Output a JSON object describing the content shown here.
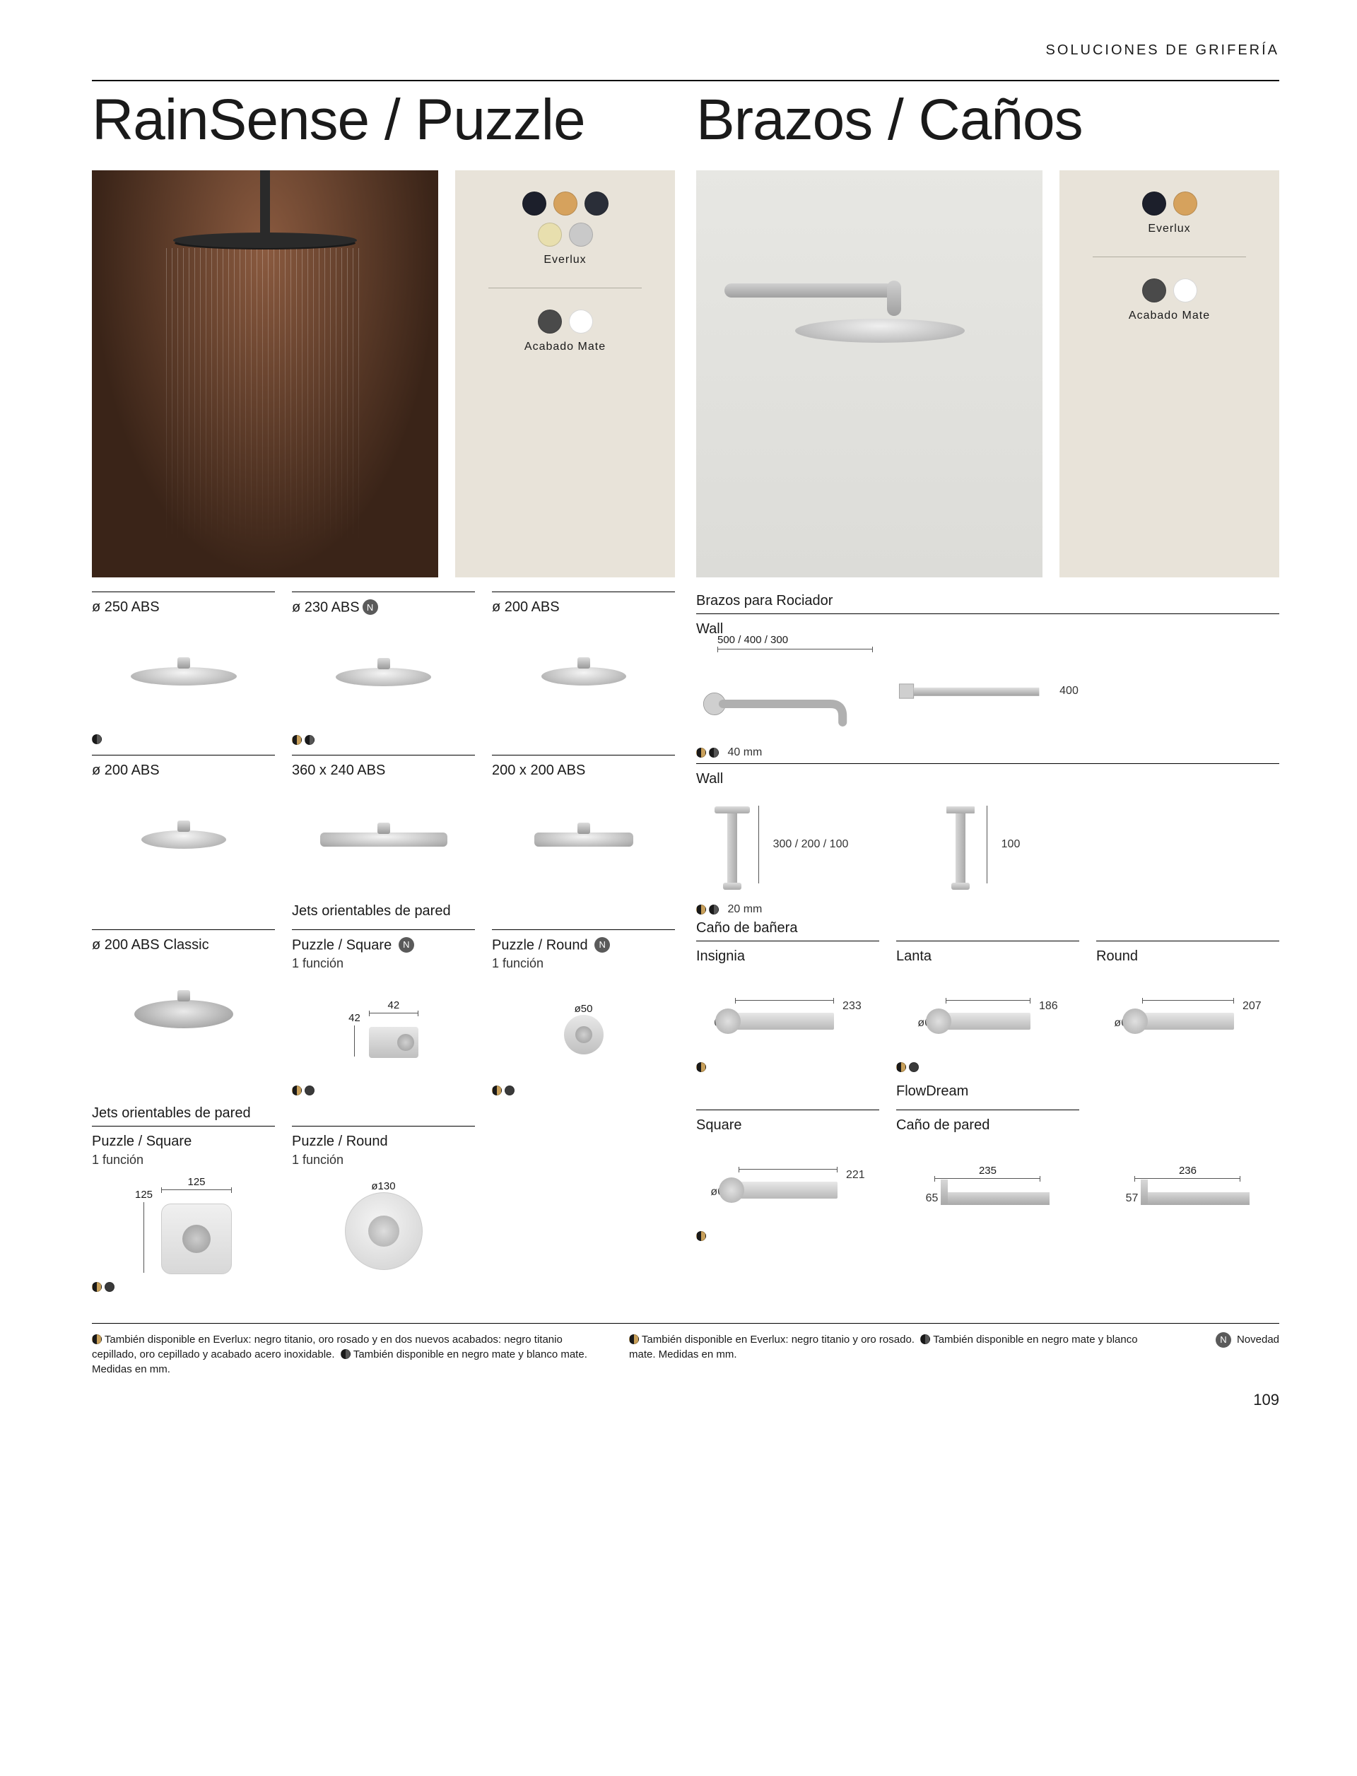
{
  "header": {
    "section": "SOLUCIONES DE GRIFERÍA"
  },
  "titles": {
    "left": "RainSense / Puzzle",
    "right": "Brazos / Caños"
  },
  "swatches": {
    "everlux_label": "Everlux",
    "mate_label": "Acabado Mate",
    "left_everlux": [
      "#1c1f2b",
      "#d6a25d",
      "#2a2e38",
      "#e8dfae",
      "#c9c9c9"
    ],
    "right_everlux": [
      "#1c1f2b",
      "#d6a25d"
    ],
    "mate": [
      "#4a4a4a",
      "#ffffff"
    ]
  },
  "left_section": {
    "row1": [
      {
        "label": "ø 250 ABS"
      },
      {
        "label": "ø 230 ABS",
        "novedad": true
      },
      {
        "label": "ø 200 ABS"
      }
    ],
    "row2": [
      {
        "label": "ø 200 ABS"
      },
      {
        "label": "360 x 240 ABS"
      },
      {
        "label": "200 x 200 ABS"
      }
    ],
    "jets_header": "Jets orientables de pared",
    "row3": [
      {
        "label": "ø 200 ABS Classic"
      },
      {
        "label": "Puzzle / Square",
        "sub": "1 función",
        "novedad": true,
        "dim1": "42",
        "dim2": "42"
      },
      {
        "label": "Puzzle / Round",
        "sub": "1 función",
        "novedad": true,
        "dim1": "ø50"
      }
    ],
    "jets_header2": "Jets orientables de pared",
    "row4": [
      {
        "label": "Puzzle / Square",
        "sub": "1 función",
        "dim1": "125",
        "dim2": "125"
      },
      {
        "label": "Puzzle / Round",
        "sub": "1 función",
        "dim1": "ø130"
      },
      {}
    ]
  },
  "right_section": {
    "subhead1": "Brazos para Rociador",
    "wall_label": "Wall",
    "arm1_dim": "500 / 400 / 300",
    "arm2_dim": "400",
    "ceiling_note1": "40 mm",
    "wall2_label": "Wall",
    "ceil1_dim": "300 / 200 / 100",
    "ceil2_dim": "100",
    "ceiling_note2": "20 mm",
    "bath_header": "Caño de bañera",
    "bath_row": [
      {
        "label": "Insignia",
        "d1": "60",
        "d2": "233"
      },
      {
        "label": "Lanta",
        "d1": "ø60",
        "d2": "186"
      },
      {
        "label": "Round",
        "d1": "ø60",
        "d2": "207"
      }
    ],
    "flowdream": "FlowDream",
    "square_label": "Square",
    "pared_label": "Caño de pared",
    "sq_d1": "ø60",
    "sq_d2": "221",
    "fd1_d1": "65",
    "fd1_d2": "235",
    "fd2_d1": "57",
    "fd2_d2": "236"
  },
  "footer": {
    "note_left_1": "También disponible en Everlux: negro titanio, oro rosado y en dos nuevos acabados: negro titanio cepillado, oro cepillado y acabado acero inoxidable.",
    "note_left_2": "También disponible en negro mate y blanco mate.",
    "note_left_3": "Medidas en mm.",
    "note_right_1": "También disponible en Everlux: negro titanio y oro rosado.",
    "note_right_2": "También disponible en negro mate y blanco mate. Medidas en mm.",
    "novedad_label": "Novedad",
    "page": "109"
  }
}
